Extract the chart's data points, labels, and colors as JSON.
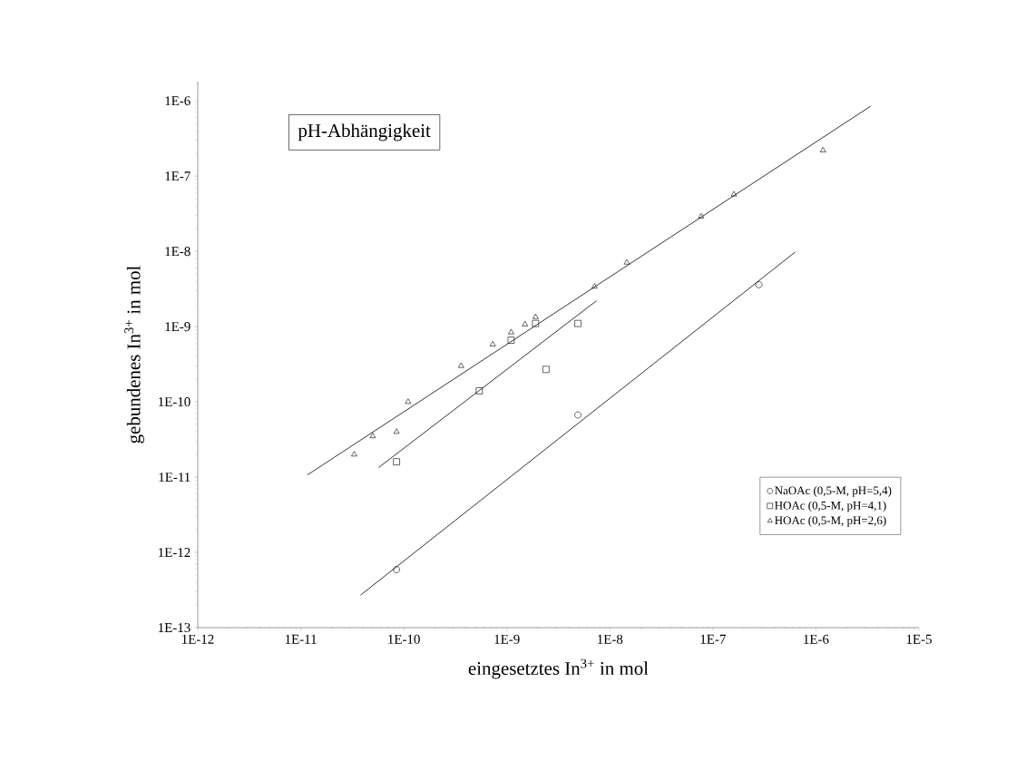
{
  "chart_data": {
    "type": "scatter",
    "title": "pH-Abhängigkeit",
    "xlabel": "eingesetztes In$^{3+}$ in mol",
    "ylabel": "gebundenes In$^{3+}$ in mol",
    "log": "xy",
    "legend": "bottom right",
    "grid": false,
    "xlim": [
      1e-12,
      1e-05
    ],
    "ylim": [
      1e-13,
      1.8e-06
    ],
    "xticks": [
      {
        "value": 1e-12,
        "label": "1E-12"
      },
      {
        "value": 1e-11,
        "label": "1E-11"
      },
      {
        "value": 1e-10,
        "label": "1E-10"
      },
      {
        "value": 1e-09,
        "label": "1E-9"
      },
      {
        "value": 1e-08,
        "label": "1E-8"
      },
      {
        "value": 1e-07,
        "label": "1E-7"
      },
      {
        "value": 1e-06,
        "label": "1E-6"
      },
      {
        "value": 1e-05,
        "label": "1E-5"
      }
    ],
    "yticks": [
      {
        "value": 1e-13,
        "label": "1E-13"
      },
      {
        "value": 1e-12,
        "label": "1E-12"
      },
      {
        "value": 1e-11,
        "label": "1E-11"
      },
      {
        "value": 1e-10,
        "label": "1E-10"
      },
      {
        "value": 1e-09,
        "label": "1E-9"
      },
      {
        "value": 1e-08,
        "label": "1E-8"
      },
      {
        "value": 1e-07,
        "label": "1E-7"
      },
      {
        "value": 1e-06,
        "label": "1E-6"
      }
    ],
    "series": [
      {
        "name": "NaOAc (0,5-M, pH=5,4)",
        "color": "#000000",
        "marker": "circle",
        "x": [
          8.5e-11,
          4.9e-09,
          2.8e-07
        ],
        "values": [
          5.9e-13,
          6.7e-11,
          3.6e-09
        ]
      },
      {
        "name": "HOAc (0,5-M, pH=4,1)",
        "color": "#000000",
        "marker": "square",
        "x": [
          8.5e-11,
          5.4e-10,
          1.1e-09,
          1.9e-09,
          2.4e-09,
          4.9e-09
        ],
        "values": [
          1.6e-11,
          1.4e-10,
          6.6e-10,
          1.1e-09,
          2.7e-10,
          1.1e-09
        ]
      },
      {
        "name": "HOAc (0,5-M, pH=2,6)",
        "color": "#000000",
        "marker": "triangle",
        "x": [
          3.3e-11,
          5e-11,
          8.5e-11,
          1.1e-10,
          3.6e-10,
          7.3e-10,
          1.1e-09,
          1.5e-09,
          1.9e-09,
          7.1e-09,
          1.46e-08,
          7.7e-08,
          1.6e-07,
          1.17e-06
        ],
        "values": [
          2e-11,
          3.5e-11,
          4e-11,
          1e-10,
          3e-10,
          5.8e-10,
          8.4e-10,
          1.07e-09,
          1.34e-09,
          3.4e-09,
          7.1e-09,
          2.9e-08,
          5.7e-08,
          2.2e-07
        ]
      },
      {
        "type": "line",
        "color": "#000000",
        "marker": "none",
        "line_style": "solid",
        "x": [
          3.8e-11,
          6.3e-07
        ],
        "values": [
          2.7e-13,
          9.8e-09
        ]
      },
      {
        "type": "line",
        "color": "#000000",
        "marker": "none",
        "line_style": "solid",
        "x": [
          5.7e-11,
          7.4e-09
        ],
        "values": [
          1.34e-11,
          2.2e-09
        ]
      },
      {
        "type": "line",
        "color": "#000000",
        "marker": "none",
        "line_style": "solid",
        "x": [
          1.16e-11,
          3.4e-06
        ],
        "values": [
          1.07e-11,
          8.5e-07
        ]
      }
    ]
  }
}
